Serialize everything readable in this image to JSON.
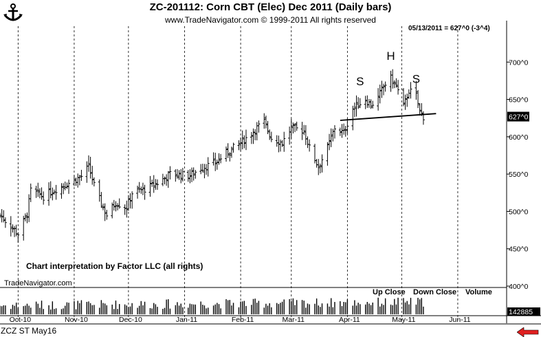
{
  "header": {
    "title": "ZC-201112:  Corn CBT (Elec) Dec 2011  (Daily bars)",
    "subtitle": "www.TradeNavigator.com © 1999-2011 All rights reserved",
    "readout": "05/13/2011 = 627^0 (-3^4)"
  },
  "footer": {
    "credit": "Chart interpretation by Factor LLC (all rights)",
    "brand": "TradeNavigator.com",
    "symbol": "ZCZ ST May16"
  },
  "volume_labels": [
    "Up Close",
    "Down Close",
    "Volume"
  ],
  "colors": {
    "bars": "#000000",
    "background": "#ffffff",
    "price_tag": "#000000",
    "nav_arrow": "#e02020"
  },
  "icons": [
    "anchor-logo-icon",
    "red-left-arrow-icon"
  ],
  "chart_data": {
    "type": "bar",
    "subtype": "ohlc-daily",
    "ylim": [
      400,
      750
    ],
    "yticks": [
      400,
      450,
      500,
      550,
      600,
      650,
      700
    ],
    "ytick_labels": [
      "400^0",
      "450^0",
      "500^0",
      "550^0",
      "600^0",
      "650^0",
      "700^0"
    ],
    "last_price": 627,
    "last_price_label": "627^0",
    "volume_tag": "142885",
    "months": [
      "Oct-10",
      "Nov-10",
      "Dec-10",
      "Jan-11",
      "Feb-11",
      "Mar-11",
      "Apr-11",
      "May-11",
      "Jun-11"
    ],
    "month_dates": [
      "2010-10-01",
      "2010-11-01",
      "2010-12-01",
      "2011-01-01",
      "2011-02-01",
      "2011-03-01",
      "2011-04-01",
      "2011-05-01",
      "2011-06-01"
    ],
    "date_range": [
      "2010-09-21",
      "2011-06-28"
    ],
    "grid": "vertical-dashed",
    "anchors": [
      [
        "2010-09-21",
        495
      ],
      [
        "2010-09-28",
        478
      ],
      [
        "2010-10-01",
        470
      ],
      [
        "2010-10-06",
        497
      ],
      [
        "2010-10-08",
        528
      ],
      [
        "2010-10-15",
        520
      ],
      [
        "2010-10-22",
        530
      ],
      [
        "2010-10-29",
        538
      ],
      [
        "2010-11-05",
        547
      ],
      [
        "2010-11-09",
        560
      ],
      [
        "2010-11-12",
        535
      ],
      [
        "2010-11-16",
        510
      ],
      [
        "2010-11-19",
        495
      ],
      [
        "2010-11-24",
        512
      ],
      [
        "2010-11-30",
        505
      ],
      [
        "2010-12-03",
        525
      ],
      [
        "2010-12-10",
        530
      ],
      [
        "2010-12-17",
        538
      ],
      [
        "2010-12-24",
        550
      ],
      [
        "2011-01-04",
        548
      ],
      [
        "2011-01-10",
        558
      ],
      [
        "2011-01-18",
        565
      ],
      [
        "2011-01-24",
        578
      ],
      [
        "2011-01-31",
        590
      ],
      [
        "2011-02-04",
        598
      ],
      [
        "2011-02-10",
        612
      ],
      [
        "2011-02-14",
        620
      ],
      [
        "2011-02-18",
        598
      ],
      [
        "2011-02-24",
        592
      ],
      [
        "2011-03-01",
        612
      ],
      [
        "2011-03-08",
        608
      ],
      [
        "2011-03-11",
        585
      ],
      [
        "2011-03-16",
        560
      ],
      [
        "2011-03-21",
        585
      ],
      [
        "2011-03-25",
        612
      ],
      [
        "2011-03-30",
        605
      ],
      [
        "2011-04-04",
        638
      ],
      [
        "2011-04-08",
        645
      ],
      [
        "2011-04-11",
        650
      ],
      [
        "2011-04-14",
        642
      ],
      [
        "2011-04-18",
        652
      ],
      [
        "2011-04-21",
        668
      ],
      [
        "2011-04-25",
        678
      ],
      [
        "2011-04-28",
        668
      ],
      [
        "2011-05-02",
        640
      ],
      [
        "2011-05-05",
        662
      ],
      [
        "2011-05-09",
        655
      ],
      [
        "2011-05-11",
        634
      ],
      [
        "2011-05-13",
        627
      ]
    ],
    "neckline": [
      [
        "2011-03-28",
        622
      ],
      [
        "2011-05-20",
        631
      ]
    ],
    "annotations": [
      {
        "text": "S",
        "date": "2011-04-08",
        "price": 669
      },
      {
        "text": "H",
        "date": "2011-04-25",
        "price": 703
      },
      {
        "text": "S",
        "date": "2011-05-09",
        "price": 672
      }
    ]
  }
}
